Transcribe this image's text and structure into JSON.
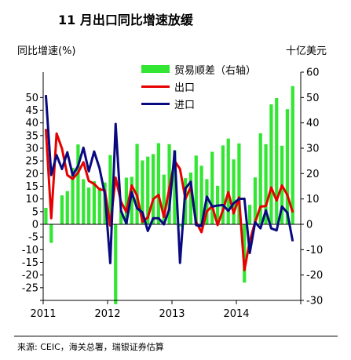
{
  "page": {
    "title": "11 月出口同比增速放缓",
    "source": "来源: CEIC，海关总署，瑞银证券估算"
  },
  "chart_data": {
    "type": "bar+line",
    "left_axis_label": "同比增速(%)",
    "right_axis_label": "十亿美元",
    "ylim_left": [
      -30,
      60
    ],
    "ylim_right": [
      -30,
      60
    ],
    "y_ticks_left": [
      -30,
      -25,
      -20,
      -15,
      -10,
      -5,
      0,
      5,
      10,
      15,
      20,
      25,
      30,
      35,
      40,
      45,
      50
    ],
    "y_tick_labels_left": [
      "",
      "-25",
      "-20",
      "-15",
      "-10",
      "-5",
      "0",
      "5",
      "10",
      "15",
      "20",
      "25",
      "30",
      "35",
      "40",
      "45",
      "50"
    ],
    "y_ticks_right": [
      -30,
      -20,
      -10,
      0,
      10,
      20,
      30,
      40,
      50,
      60
    ],
    "x_tick_labels": [
      "2011",
      "2012",
      "2013",
      "2014"
    ],
    "x": [
      "2011-01",
      "2011-02",
      "2011-03",
      "2011-04",
      "2011-05",
      "2011-06",
      "2011-07",
      "2011-08",
      "2011-09",
      "2011-10",
      "2011-11",
      "2011-12",
      "2012-01",
      "2012-02",
      "2012-03",
      "2012-04",
      "2012-05",
      "2012-06",
      "2012-07",
      "2012-08",
      "2012-09",
      "2012-10",
      "2012-11",
      "2012-12",
      "2013-01",
      "2013-02",
      "2013-03",
      "2013-04",
      "2013-05",
      "2013-06",
      "2013-07",
      "2013-08",
      "2013-09",
      "2013-10",
      "2013-11",
      "2013-12",
      "2014-01",
      "2014-02",
      "2014-03",
      "2014-04",
      "2014-05",
      "2014-06",
      "2014-07",
      "2014-08",
      "2014-09",
      "2014-10",
      "2014-11"
    ],
    "colors": {
      "trade_balance": "#33e633",
      "exports": "#e60000",
      "imports": "#0a0a80"
    },
    "series": [
      {
        "name": "贸易顺差（右轴）",
        "type": "bar",
        "axis": "right",
        "values": [
          6.5,
          -7.3,
          0.1,
          11.4,
          13.1,
          22.3,
          31.5,
          17.8,
          14.5,
          17.0,
          14.5,
          16.5,
          27.3,
          -31.5,
          5.4,
          18.4,
          18.7,
          31.7,
          25.2,
          26.7,
          27.7,
          32.0,
          19.6,
          31.6,
          29.2,
          -0.9,
          18.2,
          20.4,
          27.1,
          23.1,
          17.8,
          28.6,
          15.2,
          31.1,
          33.8,
          25.6,
          31.9,
          -23.0,
          7.7,
          18.5,
          35.9,
          31.6,
          47.3,
          49.8,
          31.0,
          45.4,
          54.5
        ]
      },
      {
        "name": "出口",
        "type": "line",
        "axis": "left",
        "values": [
          37.6,
          2.4,
          35.8,
          29.9,
          19.4,
          17.9,
          20.4,
          24.5,
          17.1,
          15.9,
          13.8,
          13.4,
          -0.5,
          18.4,
          8.9,
          4.9,
          15.3,
          11.3,
          1.0,
          2.7,
          9.9,
          11.6,
          2.9,
          14.1,
          25.0,
          21.8,
          10.0,
          14.7,
          1.0,
          -3.1,
          5.1,
          7.2,
          -0.3,
          5.6,
          12.7,
          4.3,
          10.6,
          -18.1,
          -6.6,
          0.9,
          7.0,
          7.2,
          14.5,
          9.4,
          15.3,
          11.6,
          4.7
        ]
      },
      {
        "name": "进口",
        "type": "line",
        "axis": "left",
        "values": [
          51.0,
          19.4,
          27.3,
          21.8,
          28.4,
          19.3,
          23.0,
          30.2,
          20.9,
          28.7,
          22.1,
          11.8,
          -15.3,
          39.6,
          5.3,
          0.3,
          12.7,
          6.3,
          4.7,
          -2.6,
          2.4,
          2.4,
          0.0,
          6.0,
          28.8,
          -15.2,
          14.1,
          16.8,
          -0.3,
          -0.7,
          10.9,
          7.0,
          7.4,
          7.6,
          5.3,
          8.3,
          10.0,
          10.1,
          -11.3,
          0.8,
          -1.6,
          5.5,
          -1.6,
          -2.4,
          7.0,
          4.6,
          -6.7
        ]
      }
    ]
  }
}
